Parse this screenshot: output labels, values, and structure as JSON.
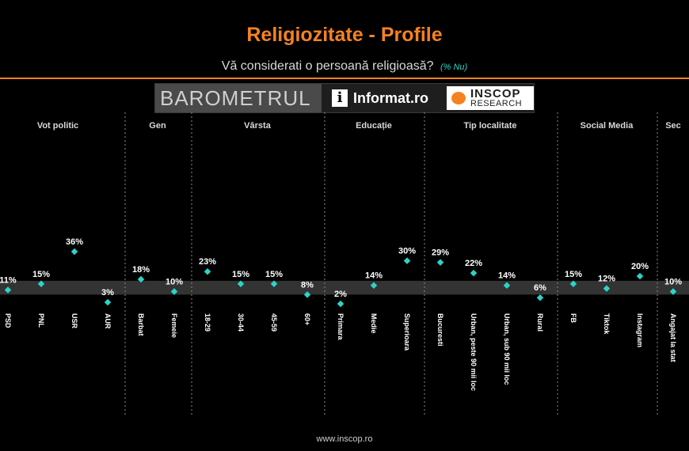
{
  "header": {
    "title": "Religiozitate - Profile",
    "subtitle": "Vă considerati o persoană religioasă?",
    "subtitle_note": "(% Nu)"
  },
  "banner": {
    "barometer": "BAROMETRUL",
    "informat_logo": "i",
    "informat": "Informat.ro",
    "inscop": "INSCOP",
    "research": "RESEARCH"
  },
  "footer": {
    "url": "www.inscop.ro"
  },
  "colors": {
    "title": "#f58220",
    "rule": "#f58220",
    "point": "#2bd4c8",
    "band": "#333333",
    "note": "#2bd4c8"
  },
  "chart_data": {
    "type": "scatter",
    "ylim": [
      0,
      40
    ],
    "average_band": [
      8,
      17
    ],
    "groups": [
      {
        "name": "Vot politic",
        "categories": [
          "PSD",
          "PNL",
          "USR",
          "AUR"
        ],
        "values": [
          11,
          15,
          36,
          3
        ]
      },
      {
        "name": "Gen",
        "categories": [
          "Barbat",
          "Femeie"
        ],
        "values": [
          18,
          10
        ]
      },
      {
        "name": "Vârsta",
        "categories": [
          "18-29",
          "30-44",
          "45-59",
          "60+"
        ],
        "values": [
          23,
          15,
          15,
          8
        ]
      },
      {
        "name": "Educație",
        "categories": [
          "Primara",
          "Medie",
          "Superioara"
        ],
        "values": [
          2,
          14,
          30
        ]
      },
      {
        "name": "Tip localitate",
        "categories": [
          "Bucuresti",
          "Urban, peste 90 mii loc",
          "Urban, sub 90 mii loc",
          "Rural"
        ],
        "values": [
          29,
          22,
          14,
          6
        ]
      },
      {
        "name": "Social Media",
        "categories": [
          "FB",
          "Tiktok",
          "Instagram"
        ],
        "values": [
          15,
          12,
          20
        ]
      },
      {
        "name": "Sec",
        "categories": [
          "Angajat la stat"
        ],
        "values": [
          10
        ]
      }
    ]
  }
}
